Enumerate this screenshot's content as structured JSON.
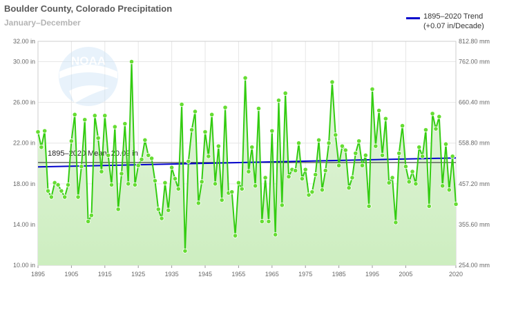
{
  "header": {
    "title": "Boulder County, Colorado Precipitation",
    "subtitle": "January–December"
  },
  "legend": {
    "line1": "1895–2020 Trend",
    "line2": "(+0.07 in/Decade)"
  },
  "mean_label": "1895–2020 Mean: 20.09 in",
  "colors": {
    "series": "#33cc11",
    "marker": "#66dd33",
    "trend": "#0000cc",
    "mean": "#333333",
    "fill_top": "#e4f4dd",
    "fill_bottom": "#cdeec0",
    "grid": "#e6e6e6"
  },
  "icons": {
    "watermark": "noaa-logo-icon"
  },
  "chart_data": {
    "type": "line",
    "title": "Boulder County, Colorado Precipitation",
    "subtitle": "January–December",
    "xlim": [
      1895,
      2020
    ],
    "ylim": [
      10,
      32
    ],
    "y2lim": [
      254.0,
      812.8
    ],
    "x_ticks": [
      "1895",
      "1905",
      "1915",
      "1925",
      "1935",
      "1945",
      "1955",
      "1965",
      "1975",
      "1985",
      "1995",
      "2005",
      "2020"
    ],
    "y_ticks": [
      "10.00 in",
      "14.00 in",
      "18.00 in",
      "22.00 in",
      "26.00 in",
      "30.00 in",
      "32.00 in"
    ],
    "y2_ticks": [
      "254.00 mm",
      "355.60 mm",
      "457.20 mm",
      "558.80 mm",
      "660.40 mm",
      "762.00 mm",
      "812.80 mm"
    ],
    "mean": 20.09,
    "trend": {
      "start": [
        1895,
        19.66
      ],
      "end": [
        2020,
        20.54
      ]
    },
    "grid": true,
    "legend_position": "top-right",
    "series": [
      {
        "name": "",
        "x": [
          1895,
          1896,
          1897,
          1898,
          1899,
          1900,
          1901,
          1902,
          1903,
          1904,
          1905,
          1906,
          1907,
          1908,
          1909,
          1910,
          1911,
          1912,
          1913,
          1914,
          1915,
          1916,
          1917,
          1918,
          1919,
          1920,
          1921,
          1922,
          1923,
          1924,
          1925,
          1926,
          1927,
          1928,
          1929,
          1930,
          1931,
          1932,
          1933,
          1934,
          1935,
          1936,
          1937,
          1938,
          1939,
          1940,
          1941,
          1942,
          1943,
          1944,
          1945,
          1946,
          1947,
          1948,
          1949,
          1950,
          1951,
          1952,
          1953,
          1954,
          1955,
          1956,
          1957,
          1958,
          1959,
          1960,
          1961,
          1962,
          1963,
          1964,
          1965,
          1966,
          1967,
          1968,
          1969,
          1970,
          1971,
          1972,
          1973,
          1974,
          1975,
          1976,
          1977,
          1978,
          1979,
          1980,
          1981,
          1982,
          1983,
          1984,
          1985,
          1986,
          1987,
          1988,
          1989,
          1990,
          1991,
          1992,
          1993,
          1994,
          1995,
          1996,
          1997,
          1998,
          1999,
          2000,
          2001,
          2002,
          2003,
          2004,
          2005,
          2006,
          2007,
          2008,
          2009,
          2010,
          2011,
          2012,
          2013,
          2014,
          2015,
          2016,
          2017,
          2018,
          2019,
          2020
        ],
        "values": [
          23.1,
          21.6,
          23.2,
          17.3,
          16.7,
          18.1,
          17.9,
          17.3,
          16.7,
          17.9,
          22.2,
          24.8,
          16.7,
          19.7,
          24.3,
          14.3,
          14.9,
          24.7,
          22.5,
          19.2,
          24.7,
          20.8,
          17.9,
          23.6,
          15.5,
          19.0,
          23.9,
          18.0,
          30.0,
          17.9,
          19.8,
          20.4,
          22.3,
          20.8,
          20.5,
          18.3,
          15.5,
          14.6,
          18.1,
          15.4,
          19.6,
          18.5,
          17.5,
          25.8,
          11.4,
          20.2,
          23.3,
          25.1,
          16.1,
          18.2,
          23.1,
          20.7,
          24.8,
          18.0,
          21.7,
          16.4,
          25.5,
          17.1,
          17.2,
          12.9,
          18.1,
          17.5,
          28.4,
          19.2,
          21.6,
          17.8,
          25.4,
          14.3,
          18.6,
          14.3,
          23.2,
          13.0,
          26.2,
          15.9,
          26.9,
          18.7,
          19.4,
          19.3,
          22.0,
          18.5,
          19.4,
          16.9,
          17.2,
          18.9,
          22.3,
          17.4,
          19.3,
          22.0,
          28.0,
          22.8,
          19.8,
          21.7,
          21.3,
          17.6,
          18.6,
          21.0,
          22.2,
          19.8,
          20.8,
          15.8,
          27.3,
          21.7,
          25.2,
          20.8,
          24.4,
          18.1,
          18.6,
          14.2,
          21.0,
          23.7,
          19.7,
          18.2,
          19.2,
          18.0,
          21.6,
          20.7,
          23.3,
          15.8,
          24.9,
          23.4,
          24.6,
          17.8,
          21.9,
          17.4,
          20.7,
          16.0
        ]
      }
    ]
  }
}
